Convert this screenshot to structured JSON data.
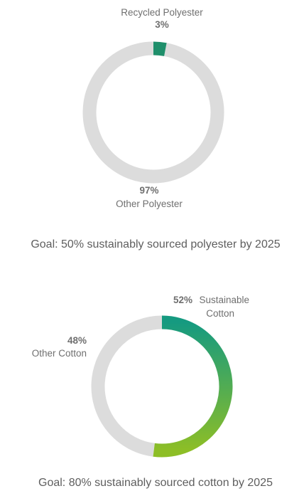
{
  "chart_data": [
    {
      "type": "pie",
      "variant": "donut",
      "slices": [
        {
          "label": "Recycled Polyester",
          "value": 3,
          "value_label": "3%",
          "color": "#1f8f6b"
        },
        {
          "label": "Other Polyester",
          "value": 97,
          "value_label": "97%",
          "color": "#dcdcdc"
        }
      ],
      "caption": "Goal: 50% sustainably sourced polyester by 2025"
    },
    {
      "type": "pie",
      "variant": "donut",
      "slices": [
        {
          "label": "Sustainable Cotton",
          "label_lines": [
            "Sustainable",
            "Cotton"
          ],
          "value": 52,
          "value_label": "52%",
          "color_start": "#159a80",
          "color_end": "#8dbe26"
        },
        {
          "label": "Other Cotton",
          "value": 48,
          "value_label": "48%",
          "color": "#dcdcdc"
        }
      ],
      "caption": "Goal: 80% sustainably sourced cotton by 2025"
    }
  ]
}
